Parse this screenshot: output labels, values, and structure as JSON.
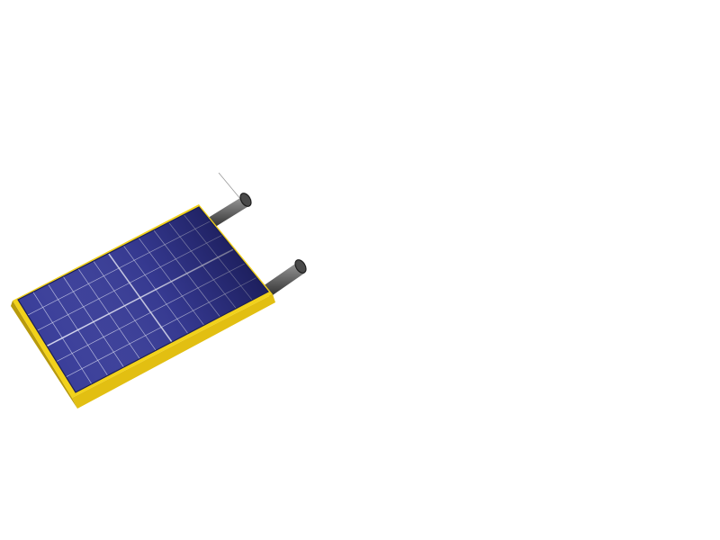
{
  "scene": {
    "subject": "solar-panel-assembly",
    "background_color": "#ffffff",
    "panel_count": 4,
    "cell_grid": {
      "rows": 12,
      "columns": 6
    },
    "support_post_count": 2
  },
  "colors": {
    "frame_yellow": "#f2d21a",
    "frame_yellow_dark": "#b89a0c",
    "panel_blue": "#3b3f9a",
    "panel_blue_dark": "#0e1145",
    "cell_line": "#d9dcf2",
    "post_gray": "#6f6f6f",
    "post_dark": "#2b2b2b"
  }
}
